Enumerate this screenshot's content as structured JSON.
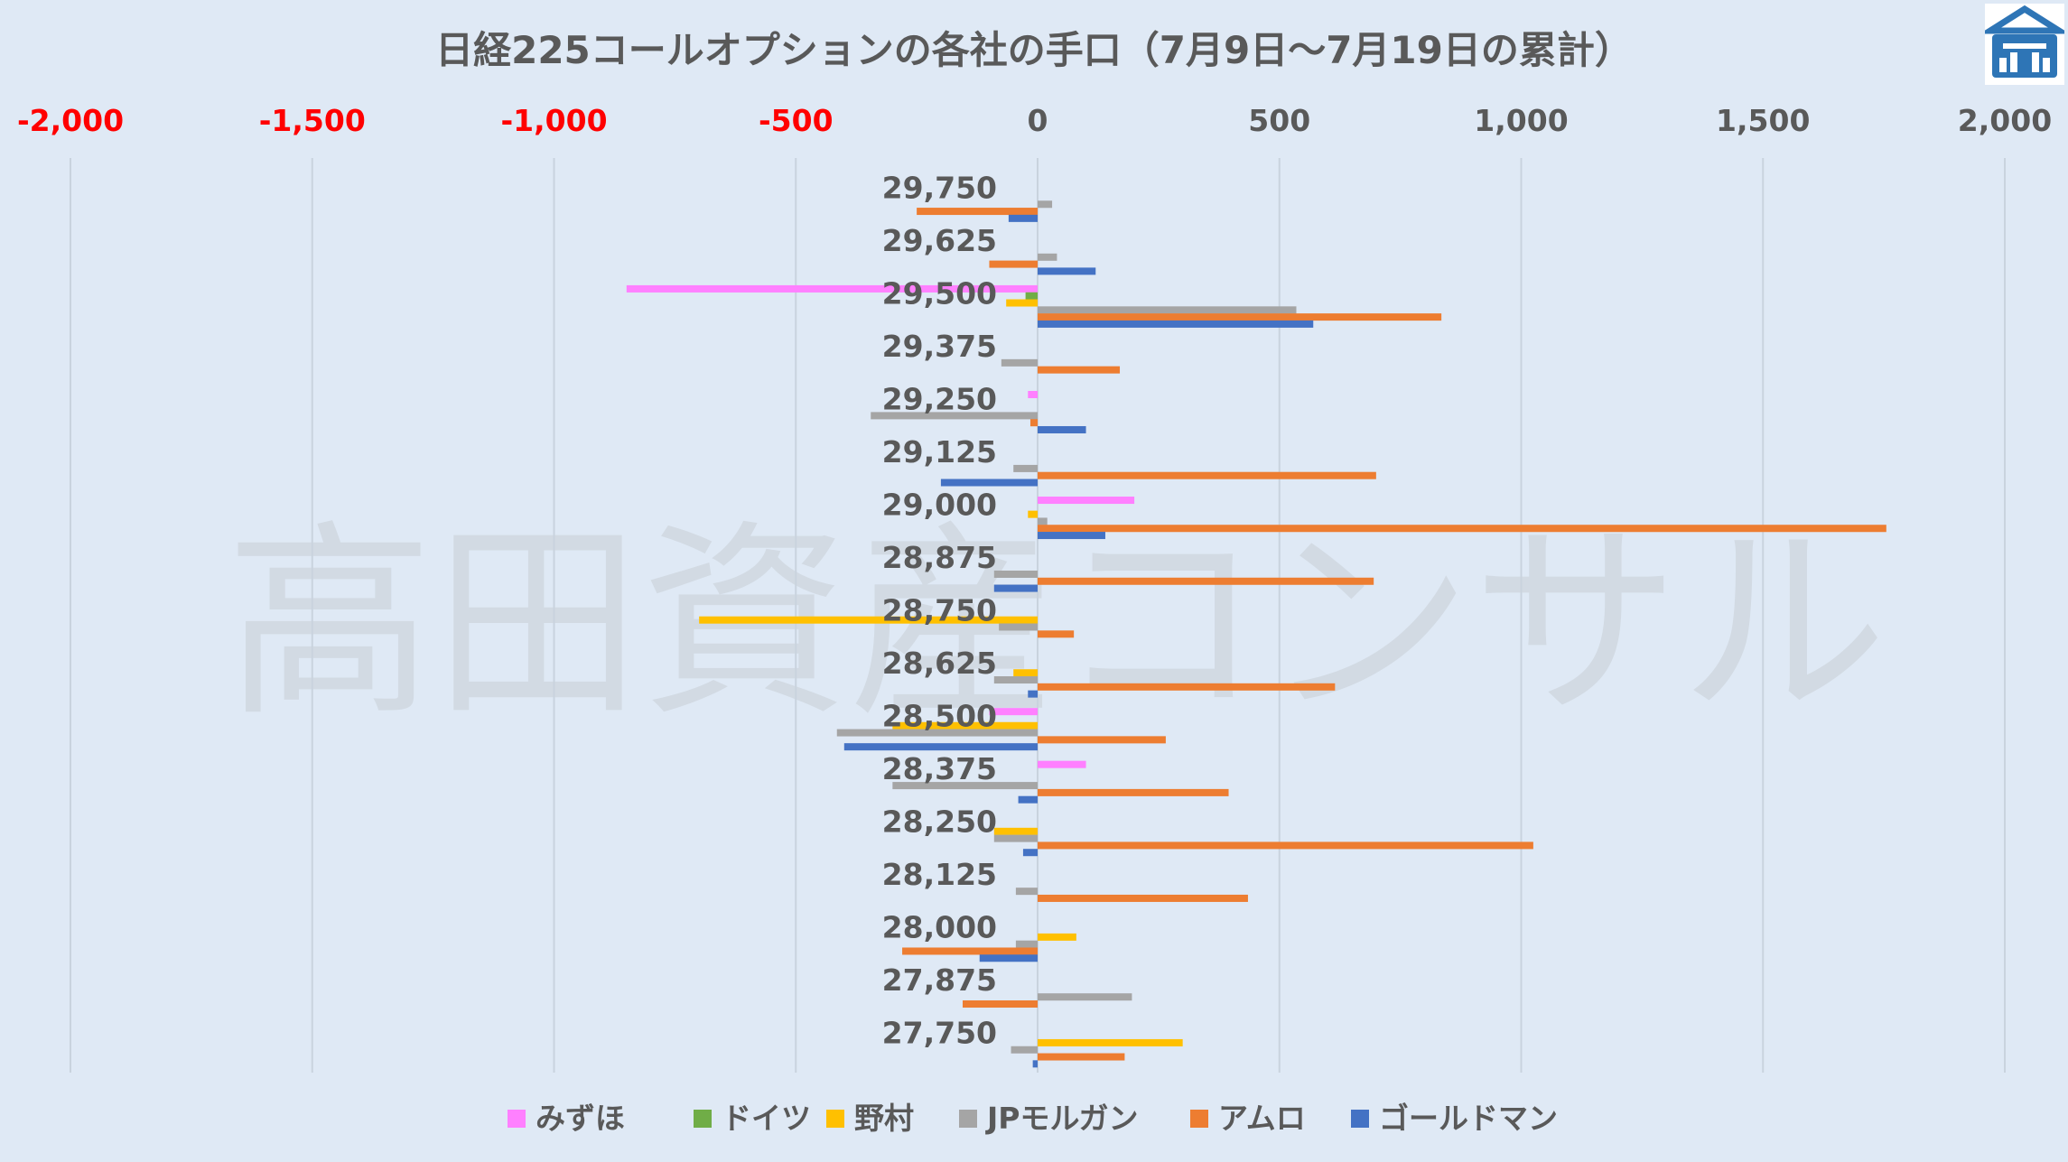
{
  "chart_data": {
    "type": "bar",
    "orientation": "horizontal",
    "title": "日経225コールオプションの各社の手口（7月9日～7月19日の累計）",
    "xlim": [
      -2000,
      2000
    ],
    "x_ticks": [
      -2000,
      -1500,
      -1000,
      -500,
      0,
      500,
      1000,
      1500,
      2000
    ],
    "x_tick_labels": [
      "-2,000",
      "-1,500",
      "-1,000",
      "-500",
      "0",
      "500",
      "1,000",
      "1,500",
      "2,000"
    ],
    "negative_tick_color": "#ff0000",
    "tick_position": "top",
    "grid": true,
    "legend_position": "bottom",
    "categories": [
      "29,750",
      "29,625",
      "29,500",
      "29,375",
      "29,250",
      "29,125",
      "29,000",
      "28,875",
      "28,750",
      "28,625",
      "28,500",
      "28,375",
      "28,250",
      "28,125",
      "28,000",
      "27,875",
      "27,750"
    ],
    "series": [
      {
        "name": "みずほ",
        "color": "#ff80ff",
        "values": [
          0,
          0,
          -850,
          0,
          -20,
          0,
          200,
          0,
          0,
          0,
          -100,
          100,
          0,
          0,
          0,
          0,
          0
        ]
      },
      {
        "name": "ドイツ",
        "color": "#70ad47",
        "values": [
          0,
          0,
          -25,
          0,
          0,
          0,
          0,
          0,
          0,
          0,
          0,
          0,
          0,
          0,
          0,
          0,
          0
        ]
      },
      {
        "name": "野村",
        "color": "#ffc000",
        "values": [
          0,
          0,
          -65,
          0,
          0,
          0,
          -20,
          0,
          -700,
          -50,
          -300,
          0,
          -90,
          0,
          80,
          0,
          300
        ]
      },
      {
        "name": "JPモルガン",
        "color": "#a5a5a5",
        "values": [
          30,
          40,
          535,
          -75,
          -345,
          -50,
          20,
          -90,
          -80,
          -90,
          -415,
          -300,
          -90,
          -45,
          -45,
          195,
          -55
        ]
      },
      {
        "name": "アムロ",
        "color": "#ed7d31",
        "values": [
          -250,
          -100,
          835,
          170,
          -15,
          700,
          1755,
          695,
          75,
          615,
          265,
          395,
          1025,
          435,
          -280,
          -155,
          180
        ]
      },
      {
        "name": "ゴールドマン",
        "color": "#4472c4",
        "values": [
          -60,
          120,
          570,
          0,
          100,
          -200,
          140,
          -90,
          0,
          -20,
          -400,
          -40,
          -30,
          0,
          -120,
          0,
          -10
        ]
      }
    ]
  },
  "watermark": "高田資産コンサル",
  "logo": {
    "name": "takada-logo",
    "color": "#2e75b6"
  }
}
